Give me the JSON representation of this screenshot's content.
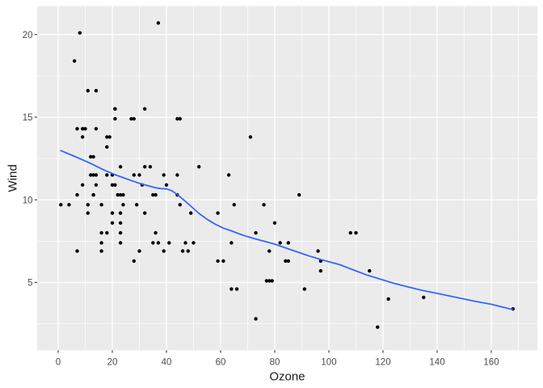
{
  "chart_data": {
    "type": "scatter",
    "title": "",
    "xlabel": "Ozone",
    "ylabel": "Wind",
    "x_ticks": [
      0,
      20,
      40,
      60,
      80,
      100,
      120,
      140,
      160
    ],
    "y_ticks": [
      5,
      10,
      15,
      20
    ],
    "x_minor_gridlines": [
      10,
      30,
      50,
      70,
      90,
      110,
      130,
      150,
      170
    ],
    "y_minor_gridlines": [
      2.5,
      7.5,
      12.5,
      17.5
    ],
    "xlim": [
      -7.8,
      177.0
    ],
    "ylim": [
      0.9,
      21.7
    ],
    "grid": "major-and-minor-white-on-gray",
    "legend": "none",
    "theme": {
      "figure_background": "#FFFFFF",
      "panel_background": "#EBEBEB",
      "gridline_color": "#FFFFFF",
      "point_color": "#000000",
      "smooth_line_color": "#3366FF",
      "tick_label_color": "#4D4D4D",
      "axis_title_color": "#1A1A1A",
      "tick_mark_color": "#333333"
    },
    "series": [
      {
        "name": "observations",
        "type": "scatter",
        "points": [
          [
            41,
            7.4
          ],
          [
            36,
            8
          ],
          [
            12,
            12.6
          ],
          [
            18,
            11.5
          ],
          [
            28,
            14.9
          ],
          [
            23,
            8.6
          ],
          [
            19,
            13.8
          ],
          [
            8,
            20.1
          ],
          [
            7,
            6.9
          ],
          [
            16,
            9.7
          ],
          [
            11,
            9.2
          ],
          [
            14,
            10.9
          ],
          [
            18,
            13.2
          ],
          [
            14,
            11.5
          ],
          [
            34,
            12
          ],
          [
            6,
            18.4
          ],
          [
            30,
            11.5
          ],
          [
            11,
            9.7
          ],
          [
            1,
            9.7
          ],
          [
            11,
            16.6
          ],
          [
            4,
            9.7
          ],
          [
            32,
            12
          ],
          [
            23,
            12
          ],
          [
            45,
            14.9
          ],
          [
            115,
            5.7
          ],
          [
            37,
            7.4
          ],
          [
            29,
            9.7
          ],
          [
            71,
            13.8
          ],
          [
            39,
            11.5
          ],
          [
            23,
            8
          ],
          [
            21,
            14.9
          ],
          [
            37,
            20.7
          ],
          [
            20,
            9.2
          ],
          [
            12,
            11.5
          ],
          [
            13,
            10.3
          ],
          [
            135,
            4.1
          ],
          [
            49,
            9.2
          ],
          [
            32,
            9.2
          ],
          [
            64,
            4.6
          ],
          [
            40,
            10.9
          ],
          [
            77,
            5.1
          ],
          [
            97,
            6.3
          ],
          [
            97,
            5.7
          ],
          [
            85,
            7.4
          ],
          [
            10,
            14.3
          ],
          [
            27,
            14.9
          ],
          [
            7,
            14.3
          ],
          [
            48,
            6.9
          ],
          [
            35,
            10.3
          ],
          [
            61,
            6.3
          ],
          [
            79,
            5.1
          ],
          [
            63,
            11.5
          ],
          [
            16,
            6.9
          ],
          [
            80,
            8.6
          ],
          [
            108,
            8
          ],
          [
            20,
            8.6
          ],
          [
            52,
            12
          ],
          [
            82,
            7.4
          ],
          [
            50,
            7.4
          ],
          [
            64,
            7.4
          ],
          [
            59,
            9.2
          ],
          [
            39,
            6.9
          ],
          [
            9,
            13.8
          ],
          [
            16,
            7.4
          ],
          [
            78,
            6.9
          ],
          [
            35,
            7.4
          ],
          [
            66,
            4.6
          ],
          [
            122,
            4
          ],
          [
            89,
            10.3
          ],
          [
            110,
            8
          ],
          [
            44,
            11.5
          ],
          [
            28,
            11.5
          ],
          [
            65,
            9.7
          ],
          [
            22,
            10.3
          ],
          [
            59,
            6.3
          ],
          [
            23,
            7.4
          ],
          [
            31,
            10.9
          ],
          [
            44,
            10.3
          ],
          [
            21,
            15.5
          ],
          [
            9,
            14.3
          ],
          [
            45,
            9.7
          ],
          [
            168,
            3.4
          ],
          [
            73,
            8
          ],
          [
            76,
            9.7
          ],
          [
            118,
            2.3
          ],
          [
            84,
            6.3
          ],
          [
            85,
            6.3
          ],
          [
            96,
            6.9
          ],
          [
            78,
            5.1
          ],
          [
            73,
            2.8
          ],
          [
            91,
            4.6
          ],
          [
            47,
            7.4
          ],
          [
            32,
            15.5
          ],
          [
            20,
            10.9
          ],
          [
            23,
            10.3
          ],
          [
            21,
            10.9
          ],
          [
            24,
            9.7
          ],
          [
            44,
            14.9
          ],
          [
            21,
            15.5
          ],
          [
            28,
            6.3
          ],
          [
            9,
            10.9
          ],
          [
            13,
            11.5
          ],
          [
            46,
            6.9
          ],
          [
            18,
            13.8
          ],
          [
            13,
            10.3
          ],
          [
            24,
            10.3
          ],
          [
            16,
            8
          ],
          [
            13,
            12.6
          ],
          [
            23,
            9.2
          ],
          [
            36,
            10.3
          ],
          [
            7,
            10.3
          ],
          [
            14,
            16.6
          ],
          [
            30,
            6.9
          ],
          [
            14,
            14.3
          ],
          [
            18,
            8
          ],
          [
            20,
            11.5
          ]
        ]
      },
      {
        "name": "loess_smooth",
        "type": "line",
        "points": [
          [
            1,
            12.98
          ],
          [
            5,
            12.7
          ],
          [
            9,
            12.42
          ],
          [
            13,
            12.12
          ],
          [
            17,
            11.8
          ],
          [
            21,
            11.52
          ],
          [
            25,
            11.28
          ],
          [
            29,
            11.05
          ],
          [
            33,
            10.86
          ],
          [
            36,
            10.73
          ],
          [
            38,
            10.68
          ],
          [
            40,
            10.66
          ],
          [
            42,
            10.55
          ],
          [
            44,
            10.32
          ],
          [
            46,
            10.05
          ],
          [
            49,
            9.62
          ],
          [
            52,
            9.18
          ],
          [
            55,
            8.82
          ],
          [
            58,
            8.53
          ],
          [
            61,
            8.29
          ],
          [
            64,
            8.12
          ],
          [
            67,
            7.93
          ],
          [
            70,
            7.77
          ],
          [
            73,
            7.63
          ],
          [
            77,
            7.45
          ],
          [
            80,
            7.32
          ],
          [
            86,
            6.98
          ],
          [
            92,
            6.64
          ],
          [
            98,
            6.34
          ],
          [
            104,
            6.08
          ],
          [
            109,
            5.76
          ],
          [
            114,
            5.45
          ],
          [
            119,
            5.2
          ],
          [
            124,
            4.95
          ],
          [
            129,
            4.74
          ],
          [
            134,
            4.54
          ],
          [
            139,
            4.37
          ],
          [
            144,
            4.2
          ],
          [
            149,
            4.03
          ],
          [
            154,
            3.86
          ],
          [
            160,
            3.68
          ],
          [
            164,
            3.52
          ],
          [
            167,
            3.4
          ],
          [
            168,
            3.38
          ]
        ]
      }
    ]
  }
}
